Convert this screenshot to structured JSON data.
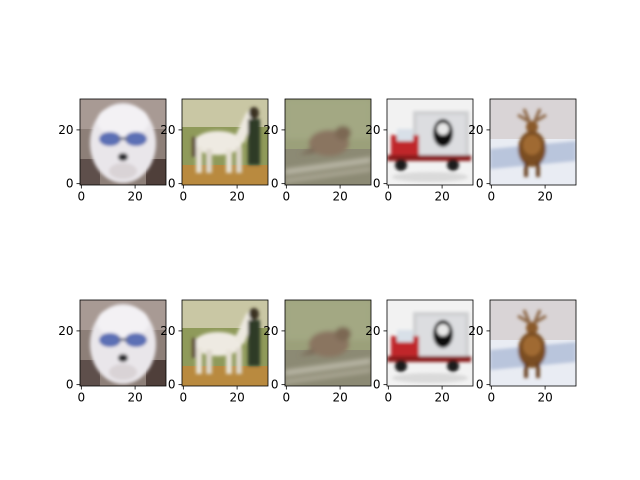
{
  "figure": {
    "background": "#ffffff",
    "axis_color": "#000000"
  },
  "chart_data": {
    "type": "image_grid",
    "rows": 2,
    "cols": 5,
    "image_size": [
      32,
      32
    ],
    "xlim": [
      -0.5,
      31.5
    ],
    "ylim": [
      31.5,
      -0.5
    ],
    "x_ticks": [
      0,
      20
    ],
    "y_ticks": [
      0,
      20
    ],
    "panels": [
      {
        "row": 0,
        "col": 0,
        "subject": "white-dog-with-sunglasses",
        "icon": "dog-image"
      },
      {
        "row": 0,
        "col": 1,
        "subject": "horse-with-person",
        "icon": "horse-image"
      },
      {
        "row": 0,
        "col": 2,
        "subject": "bird",
        "icon": "bird-image"
      },
      {
        "row": 0,
        "col": 3,
        "subject": "truck",
        "icon": "truck-image"
      },
      {
        "row": 0,
        "col": 4,
        "subject": "deer",
        "icon": "deer-image"
      },
      {
        "row": 1,
        "col": 0,
        "subject": "white-dog-with-sunglasses",
        "icon": "dog-image"
      },
      {
        "row": 1,
        "col": 1,
        "subject": "horse-with-person",
        "icon": "horse-image"
      },
      {
        "row": 1,
        "col": 2,
        "subject": "bird",
        "icon": "bird-image"
      },
      {
        "row": 1,
        "col": 3,
        "subject": "truck",
        "icon": "truck-image"
      },
      {
        "row": 1,
        "col": 4,
        "subject": "deer",
        "icon": "deer-image"
      }
    ]
  }
}
